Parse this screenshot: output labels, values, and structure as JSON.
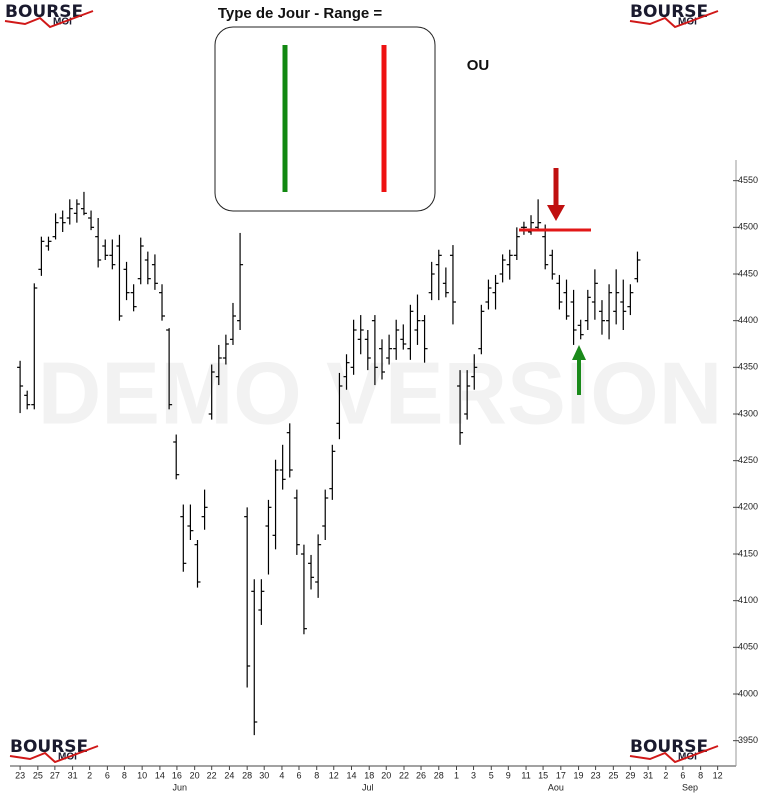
{
  "chart_data": {
    "type": "ohlc",
    "title": "Type de Jour - Range =",
    "annotation": "OU",
    "watermark": "DEMO VERSION",
    "logo": {
      "main": "BOURSE",
      "sub": "MOI"
    },
    "color": "#000000",
    "x": [
      0,
      1,
      2,
      3,
      4,
      5,
      6,
      7,
      8,
      9,
      10,
      11,
      12,
      13,
      14,
      15,
      16,
      17,
      18,
      19,
      20,
      21,
      22,
      23,
      24,
      25,
      26,
      27,
      28,
      29,
      30,
      31,
      32,
      33,
      34,
      35,
      36,
      37,
      38,
      39,
      40,
      41,
      42,
      43,
      44,
      45,
      46,
      47,
      48,
      49,
      50,
      51,
      52,
      53,
      54,
      55,
      56,
      57,
      58,
      59,
      60,
      61,
      62,
      63,
      64,
      65,
      66,
      67,
      68,
      69,
      70,
      71,
      72,
      73,
      74,
      75,
      76,
      77,
      78,
      79,
      80,
      81,
      82,
      83,
      84,
      85,
      86,
      87
    ],
    "open": [
      4350,
      4320,
      4310,
      4455,
      4480,
      4490,
      4510,
      4510,
      4515,
      4520,
      4510,
      4490,
      4480,
      4470,
      4480,
      4455,
      4430,
      4445,
      4465,
      4460,
      4430,
      4390,
      4270,
      4190,
      4180,
      4160,
      4190,
      4300,
      4340,
      4360,
      4380,
      4400,
      4190,
      4110,
      4090,
      4180,
      4170,
      4240,
      4280,
      4210,
      4150,
      4140,
      4120,
      4180,
      4220,
      4290,
      4340,
      4350,
      4380,
      4380,
      4400,
      4370,
      4360,
      4370,
      4380,
      4370,
      4390,
      4400,
      4430,
      4460,
      4440,
      4470,
      4330,
      4300,
      4340,
      4370,
      4420,
      4430,
      4450,
      4460,
      4470,
      4500,
      4495,
      4500,
      4490,
      4470,
      4440,
      4430,
      4420,
      4395,
      4400,
      4420,
      4410,
      4400,
      4410,
      4420,
      4415,
      4445
    ],
    "high": [
      4357,
      4325,
      4440,
      4490,
      4490,
      4515,
      4518,
      4530,
      4530,
      4538,
      4518,
      4510,
      4487,
      4487,
      4492,
      4463,
      4439,
      4489,
      4474,
      4471,
      4439,
      4392,
      4278,
      4203,
      4203,
      4165,
      4219,
      4353,
      4374,
      4385,
      4419,
      4494,
      4200,
      4123,
      4123,
      4208,
      4251,
      4267,
      4290,
      4219,
      4160,
      4149,
      4171,
      4219,
      4267,
      4344,
      4364,
      4401,
      4406,
      4390,
      4406,
      4380,
      4385,
      4401,
      4396,
      4417,
      4428,
      4406,
      4463,
      4476,
      4457,
      4481,
      4347,
      4347,
      4364,
      4417,
      4444,
      4449,
      4471,
      4476,
      4500,
      4506,
      4513,
      4530,
      4503,
      4476,
      4449,
      4444,
      4433,
      4401,
      4433,
      4455,
      4422,
      4439,
      4455,
      4444,
      4439,
      4474
    ],
    "low": [
      4301,
      4305,
      4305,
      4448,
      4475,
      4487,
      4495,
      4503,
      4505,
      4513,
      4497,
      4457,
      4465,
      4455,
      4400,
      4422,
      4410,
      4439,
      4439,
      4433,
      4400,
      4305,
      4230,
      4131,
      4165,
      4114,
      4176,
      4294,
      4331,
      4353,
      4374,
      4390,
      4007,
      3956,
      4074,
      4128,
      4155,
      4219,
      4232,
      4149,
      4064,
      4112,
      4103,
      4165,
      4208,
      4273,
      4326,
      4342,
      4364,
      4347,
      4331,
      4337,
      4353,
      4358,
      4369,
      4358,
      4374,
      4355,
      4422,
      4422,
      4425,
      4396,
      4267,
      4294,
      4326,
      4364,
      4412,
      4412,
      4441,
      4444,
      4465,
      4492,
      4492,
      4497,
      4455,
      4444,
      4412,
      4401,
      4374,
      4380,
      4390,
      4401,
      4385,
      4380,
      4396,
      4390,
      4406,
      4441
    ],
    "close": [
      4330,
      4310,
      4435,
      4485,
      4485,
      4505,
      4505,
      4520,
      4525,
      4515,
      4500,
      4465,
      4470,
      4460,
      4405,
      4430,
      4415,
      4480,
      4445,
      4440,
      4405,
      4310,
      4235,
      4140,
      4175,
      4120,
      4200,
      4345,
      4360,
      4375,
      4405,
      4460,
      4030,
      3970,
      4110,
      4200,
      4240,
      4230,
      4240,
      4160,
      4070,
      4125,
      4160,
      4210,
      4260,
      4330,
      4355,
      4390,
      4390,
      4360,
      4350,
      4345,
      4370,
      4390,
      4375,
      4410,
      4400,
      4370,
      4450,
      4470,
      4430,
      4420,
      4280,
      4330,
      4350,
      4410,
      4435,
      4440,
      4465,
      4470,
      4490,
      4500,
      4505,
      4505,
      4460,
      4450,
      4420,
      4405,
      4390,
      4385,
      4425,
      4440,
      4400,
      4430,
      4430,
      4410,
      4430,
      4465
    ],
    "xlim": [
      -1,
      103
    ],
    "ylim": [
      3925,
      4600
    ],
    "yticks": [
      3950,
      4000,
      4050,
      4100,
      4150,
      4200,
      4250,
      4300,
      4350,
      4400,
      4450,
      4500,
      4550
    ],
    "xticks": [
      {
        "value": 0,
        "label": "23"
      },
      {
        "value": 2.5,
        "label": "25"
      },
      {
        "value": 4.9,
        "label": "27"
      },
      {
        "value": 7.4,
        "label": "31"
      },
      {
        "value": 9.8,
        "label": "2"
      },
      {
        "value": 12.3,
        "label": "6"
      },
      {
        "value": 14.7,
        "label": "8"
      },
      {
        "value": 17.2,
        "label": "10"
      },
      {
        "value": 19.7,
        "label": "14"
      },
      {
        "value": 22.1,
        "label": "16"
      },
      {
        "value": 24.6,
        "label": "20"
      },
      {
        "value": 27.0,
        "label": "22"
      },
      {
        "value": 29.5,
        "label": "24"
      },
      {
        "value": 32.0,
        "label": "28"
      },
      {
        "value": 34.4,
        "label": "30"
      },
      {
        "value": 36.9,
        "label": "4"
      },
      {
        "value": 39.3,
        "label": "6"
      },
      {
        "value": 41.8,
        "label": "8"
      },
      {
        "value": 44.2,
        "label": "12"
      },
      {
        "value": 46.7,
        "label": "14"
      },
      {
        "value": 49.2,
        "label": "18"
      },
      {
        "value": 51.6,
        "label": "20"
      },
      {
        "value": 54.1,
        "label": "22"
      },
      {
        "value": 56.5,
        "label": "26"
      },
      {
        "value": 59.0,
        "label": "28"
      },
      {
        "value": 61.5,
        "label": "1"
      },
      {
        "value": 63.9,
        "label": "3"
      },
      {
        "value": 66.4,
        "label": "5"
      },
      {
        "value": 68.8,
        "label": "9"
      },
      {
        "value": 71.3,
        "label": "11"
      },
      {
        "value": 73.7,
        "label": "15"
      },
      {
        "value": 76.2,
        "label": "17"
      },
      {
        "value": 78.7,
        "label": "19"
      },
      {
        "value": 81.1,
        "label": "23"
      },
      {
        "value": 83.6,
        "label": "25"
      },
      {
        "value": 86.0,
        "label": "29"
      },
      {
        "value": 88.5,
        "label": "31"
      },
      {
        "value": 91.0,
        "label": "2"
      },
      {
        "value": 93.4,
        "label": "6"
      },
      {
        "value": 95.9,
        "label": "8"
      },
      {
        "value": 98.3,
        "label": "12"
      }
    ],
    "months": [
      {
        "value": 22.5,
        "label": "Jun"
      },
      {
        "value": 49.0,
        "label": "Jul"
      },
      {
        "value": 75.5,
        "label": "Aou"
      },
      {
        "value": 94.4,
        "label": "Sep"
      }
    ]
  }
}
